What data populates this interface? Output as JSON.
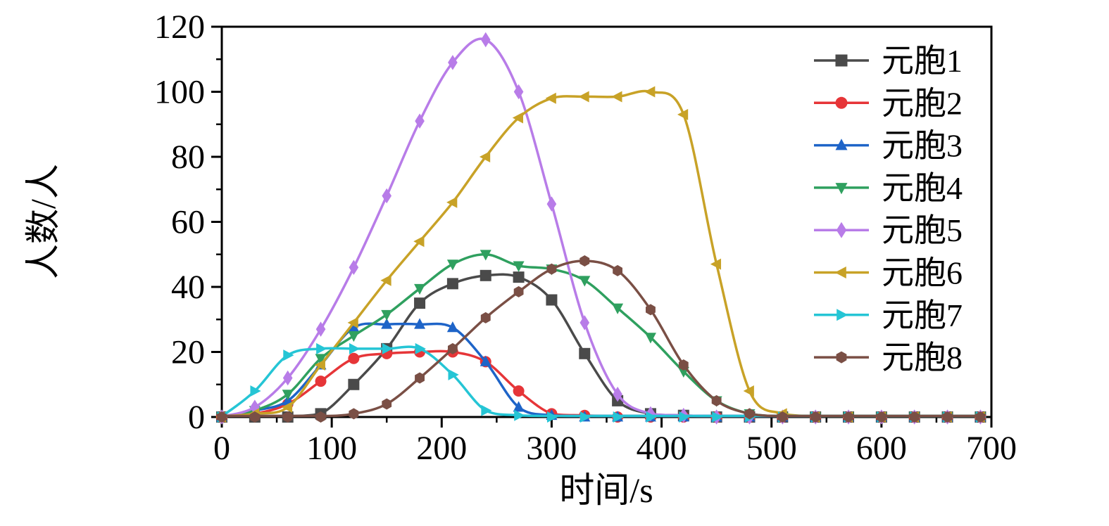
{
  "chart_data": {
    "type": "line",
    "title": "",
    "xlabel": "时间/s",
    "ylabel": "人数/人",
    "xlim": [
      0,
      700
    ],
    "ylim": [
      0,
      120
    ],
    "x_ticks": [
      0,
      100,
      200,
      300,
      400,
      500,
      600,
      700
    ],
    "y_ticks": [
      0,
      20,
      40,
      60,
      80,
      100,
      120
    ],
    "x_minor_step": 50,
    "y_minor_step": 10,
    "grid": false,
    "legend_position": "top-right",
    "frame_color": "#000000",
    "background_color": "#ffffff",
    "x": [
      0,
      30,
      60,
      90,
      120,
      150,
      180,
      210,
      240,
      270,
      300,
      330,
      360,
      390,
      420,
      450,
      480,
      510,
      540,
      570,
      600,
      630,
      660,
      690
    ],
    "series": [
      {
        "name": "元胞1",
        "color": "#4a4a4a",
        "marker": "square",
        "values": [
          0,
          0,
          0,
          1,
          10,
          21,
          35,
          41,
          43.5,
          43,
          36,
          19.5,
          5,
          1,
          0.5,
          0,
          0,
          0,
          0,
          0,
          0,
          0,
          0,
          0
        ]
      },
      {
        "name": "元胞2",
        "color": "#e63538",
        "marker": "circle",
        "values": [
          0,
          1,
          4,
          11,
          18,
          19.5,
          20,
          20,
          17,
          8,
          1,
          0.5,
          0,
          0,
          0,
          0,
          0,
          0,
          0,
          0,
          0,
          0,
          0,
          0
        ]
      },
      {
        "name": "元胞3",
        "color": "#1e64c8",
        "marker": "triangle-up",
        "values": [
          0,
          2,
          5,
          16,
          27.5,
          28.5,
          28.5,
          27.5,
          17,
          3,
          0.5,
          0,
          0,
          0,
          0,
          0,
          0,
          0,
          0,
          0,
          0,
          0,
          0,
          0
        ]
      },
      {
        "name": "元胞4",
        "color": "#2fa05f",
        "marker": "triangle-down",
        "values": [
          0,
          2,
          7,
          18,
          25,
          31.5,
          39.5,
          47,
          50,
          46.5,
          45.5,
          42,
          33.5,
          24.5,
          14,
          5,
          1,
          0,
          0,
          0,
          0,
          0,
          0,
          0
        ]
      },
      {
        "name": "元胞5",
        "color": "#b87ce8",
        "marker": "diamond",
        "values": [
          0,
          3,
          12,
          27,
          46,
          68,
          91,
          109,
          116,
          100,
          65.5,
          29,
          7,
          1,
          0.5,
          0,
          0,
          0,
          0,
          0,
          0,
          0,
          0,
          0
        ]
      },
      {
        "name": "元胞6",
        "color": "#c8a227",
        "marker": "triangle-left",
        "values": [
          0,
          1,
          3,
          16,
          29,
          42,
          54,
          66,
          80,
          92,
          98,
          98.5,
          98.5,
          100,
          93,
          47,
          8,
          1,
          0,
          0,
          0,
          0,
          0,
          0
        ]
      },
      {
        "name": "元胞7",
        "color": "#25c5d5",
        "marker": "triangle-right",
        "values": [
          0,
          8,
          19,
          21,
          21,
          21,
          21,
          13,
          2,
          0.5,
          0,
          0,
          0,
          0,
          0,
          0,
          0,
          0,
          0,
          0,
          0,
          0,
          0,
          0
        ]
      },
      {
        "name": "元胞8",
        "color": "#7a4f45",
        "marker": "hexagon",
        "values": [
          0,
          0,
          0,
          0,
          1,
          4,
          12,
          21,
          30.5,
          38.5,
          45.5,
          48,
          45,
          33,
          16,
          5,
          1,
          0,
          0,
          0,
          0,
          0,
          0,
          0
        ]
      }
    ]
  }
}
